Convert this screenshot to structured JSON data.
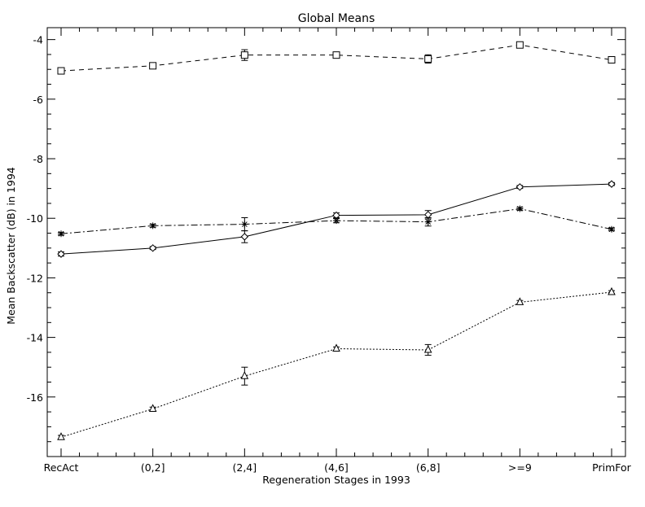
{
  "chart_data": {
    "type": "line",
    "title": "Global Means",
    "xlabel": "Regeneration Stages in 1993",
    "ylabel": "Mean Backscatter (dB) in 1994",
    "categories": [
      "RecAct",
      "(0,2]",
      "(2,4]",
      "(4,6]",
      "(6,8]",
      ">=9",
      "PrimFor"
    ],
    "ylim": [
      -18,
      -3.6
    ],
    "yticks": [
      "-16",
      "-14",
      "-12",
      "-10",
      "-8",
      "-6",
      "-4"
    ],
    "grid": false,
    "series": [
      {
        "marker": "square",
        "line_style": "dashed",
        "values": [
          -5.05,
          -4.88,
          -4.52,
          -4.52,
          -4.65,
          -4.18,
          -4.68
        ],
        "errors": [
          0.06,
          0.06,
          0.18,
          0.07,
          0.14,
          0.06,
          0.1
        ]
      },
      {
        "marker": "diamond",
        "line_style": "solid",
        "values": [
          -11.2,
          -11.0,
          -10.62,
          -9.9,
          -9.88,
          -8.95,
          -8.85
        ],
        "errors": [
          0.07,
          0.05,
          0.2,
          0.08,
          0.14,
          0.05,
          0.05
        ]
      },
      {
        "marker": "asterisk",
        "line_style": "dash-dot",
        "values": [
          -10.52,
          -10.25,
          -10.2,
          -10.08,
          -10.12,
          -9.68,
          -10.37
        ],
        "errors": [
          0.05,
          0.05,
          0.22,
          0.07,
          0.14,
          0.05,
          0.05
        ]
      },
      {
        "marker": "triangle",
        "line_style": "dotted",
        "values": [
          -17.35,
          -16.4,
          -15.3,
          -14.38,
          -14.42,
          -12.82,
          -12.48
        ],
        "errors": [
          0.06,
          0.06,
          0.3,
          0.06,
          0.18,
          0.06,
          0.05
        ]
      }
    ]
  }
}
